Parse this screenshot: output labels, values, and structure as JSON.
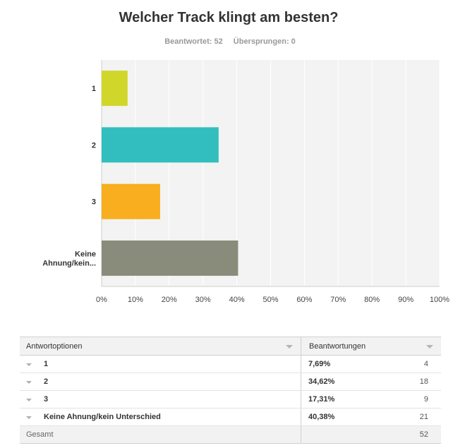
{
  "survey": {
    "title": "Welcher Track klingt am besten?",
    "answered": "Beantwortet: 52",
    "skipped": "Übersprungen: 0"
  },
  "chart_data": {
    "type": "bar",
    "orientation": "horizontal",
    "categories": [
      "1",
      "2",
      "3",
      "Keine Ahnung/kein..."
    ],
    "values": [
      7.69,
      34.62,
      17.31,
      40.38
    ],
    "colors": [
      "#d0d72a",
      "#32bebe",
      "#f8ae1e",
      "#898b7b"
    ],
    "xlim": [
      0,
      100
    ],
    "x_ticks": [
      "0%",
      "10%",
      "20%",
      "30%",
      "40%",
      "50%",
      "60%",
      "70%",
      "80%",
      "90%",
      "100%"
    ],
    "grid": true,
    "legend": "none"
  },
  "table": {
    "header_option": "Antwortoptionen",
    "header_responses": "Beantwortungen",
    "rows": [
      {
        "option": "1",
        "percent": "7,69%",
        "count": "4"
      },
      {
        "option": "2",
        "percent": "34,62%",
        "count": "18"
      },
      {
        "option": "3",
        "percent": "17,31%",
        "count": "9"
      },
      {
        "option": "Keine Ahnung/kein Unterschied",
        "percent": "40,38%",
        "count": "21"
      }
    ],
    "total_label": "Gesamt",
    "total_count": "52"
  }
}
